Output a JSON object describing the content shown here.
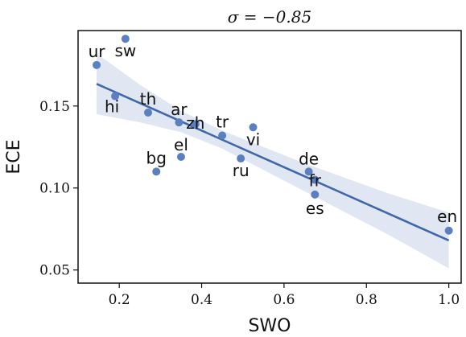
{
  "chart_data": {
    "type": "scatter",
    "title": "σ = −0.85",
    "xlabel": "SWO",
    "ylabel": "ECE",
    "xlim": [
      0.1,
      1.03
    ],
    "ylim": [
      0.042,
      0.196
    ],
    "xticks": [
      0.2,
      0.4,
      0.6,
      0.8,
      1.0
    ],
    "xtick_labels": [
      "0.2",
      "0.4",
      "0.6",
      "0.8",
      "1.0"
    ],
    "yticks": [
      0.05,
      0.1,
      0.15
    ],
    "ytick_labels": [
      "0.05",
      "0.10",
      "0.15"
    ],
    "grid": false,
    "colors": {
      "point": "#5b7fbf",
      "line": "#3f68aa",
      "band": "#dde3f1"
    },
    "points": [
      {
        "label": "sw",
        "x": 0.215,
        "y": 0.191
      },
      {
        "label": "ur",
        "x": 0.145,
        "y": 0.175
      },
      {
        "label": "hi",
        "x": 0.19,
        "y": 0.156
      },
      {
        "label": "th",
        "x": 0.27,
        "y": 0.146
      },
      {
        "label": "ar",
        "x": 0.345,
        "y": 0.14
      },
      {
        "label": "zh",
        "x": 0.385,
        "y": 0.139
      },
      {
        "label": "tr",
        "x": 0.45,
        "y": 0.132
      },
      {
        "label": "vi",
        "x": 0.525,
        "y": 0.137
      },
      {
        "label": "el",
        "x": 0.35,
        "y": 0.119
      },
      {
        "label": "bg",
        "x": 0.29,
        "y": 0.11
      },
      {
        "label": "ru",
        "x": 0.495,
        "y": 0.118
      },
      {
        "label": "de",
        "x": 0.66,
        "y": 0.11
      },
      {
        "label": "fr",
        "x": 0.675,
        "y": 0.105
      },
      {
        "label": "es",
        "x": 0.675,
        "y": 0.096
      },
      {
        "label": "en",
        "x": 1.0,
        "y": 0.074
      }
    ],
    "regression": {
      "x": [
        0.145,
        0.25,
        0.35,
        0.45,
        0.55,
        0.65,
        0.75,
        0.85,
        1.0
      ],
      "y": [
        0.1635,
        0.1515,
        0.1403,
        0.1291,
        0.1179,
        0.1067,
        0.0955,
        0.0843,
        0.068
      ],
      "ci_lower": [
        0.145,
        0.14,
        0.134,
        0.124,
        0.111,
        0.098,
        0.085,
        0.072,
        0.051
      ],
      "ci_upper": [
        0.182,
        0.163,
        0.147,
        0.135,
        0.125,
        0.115,
        0.106,
        0.097,
        0.085
      ]
    }
  }
}
